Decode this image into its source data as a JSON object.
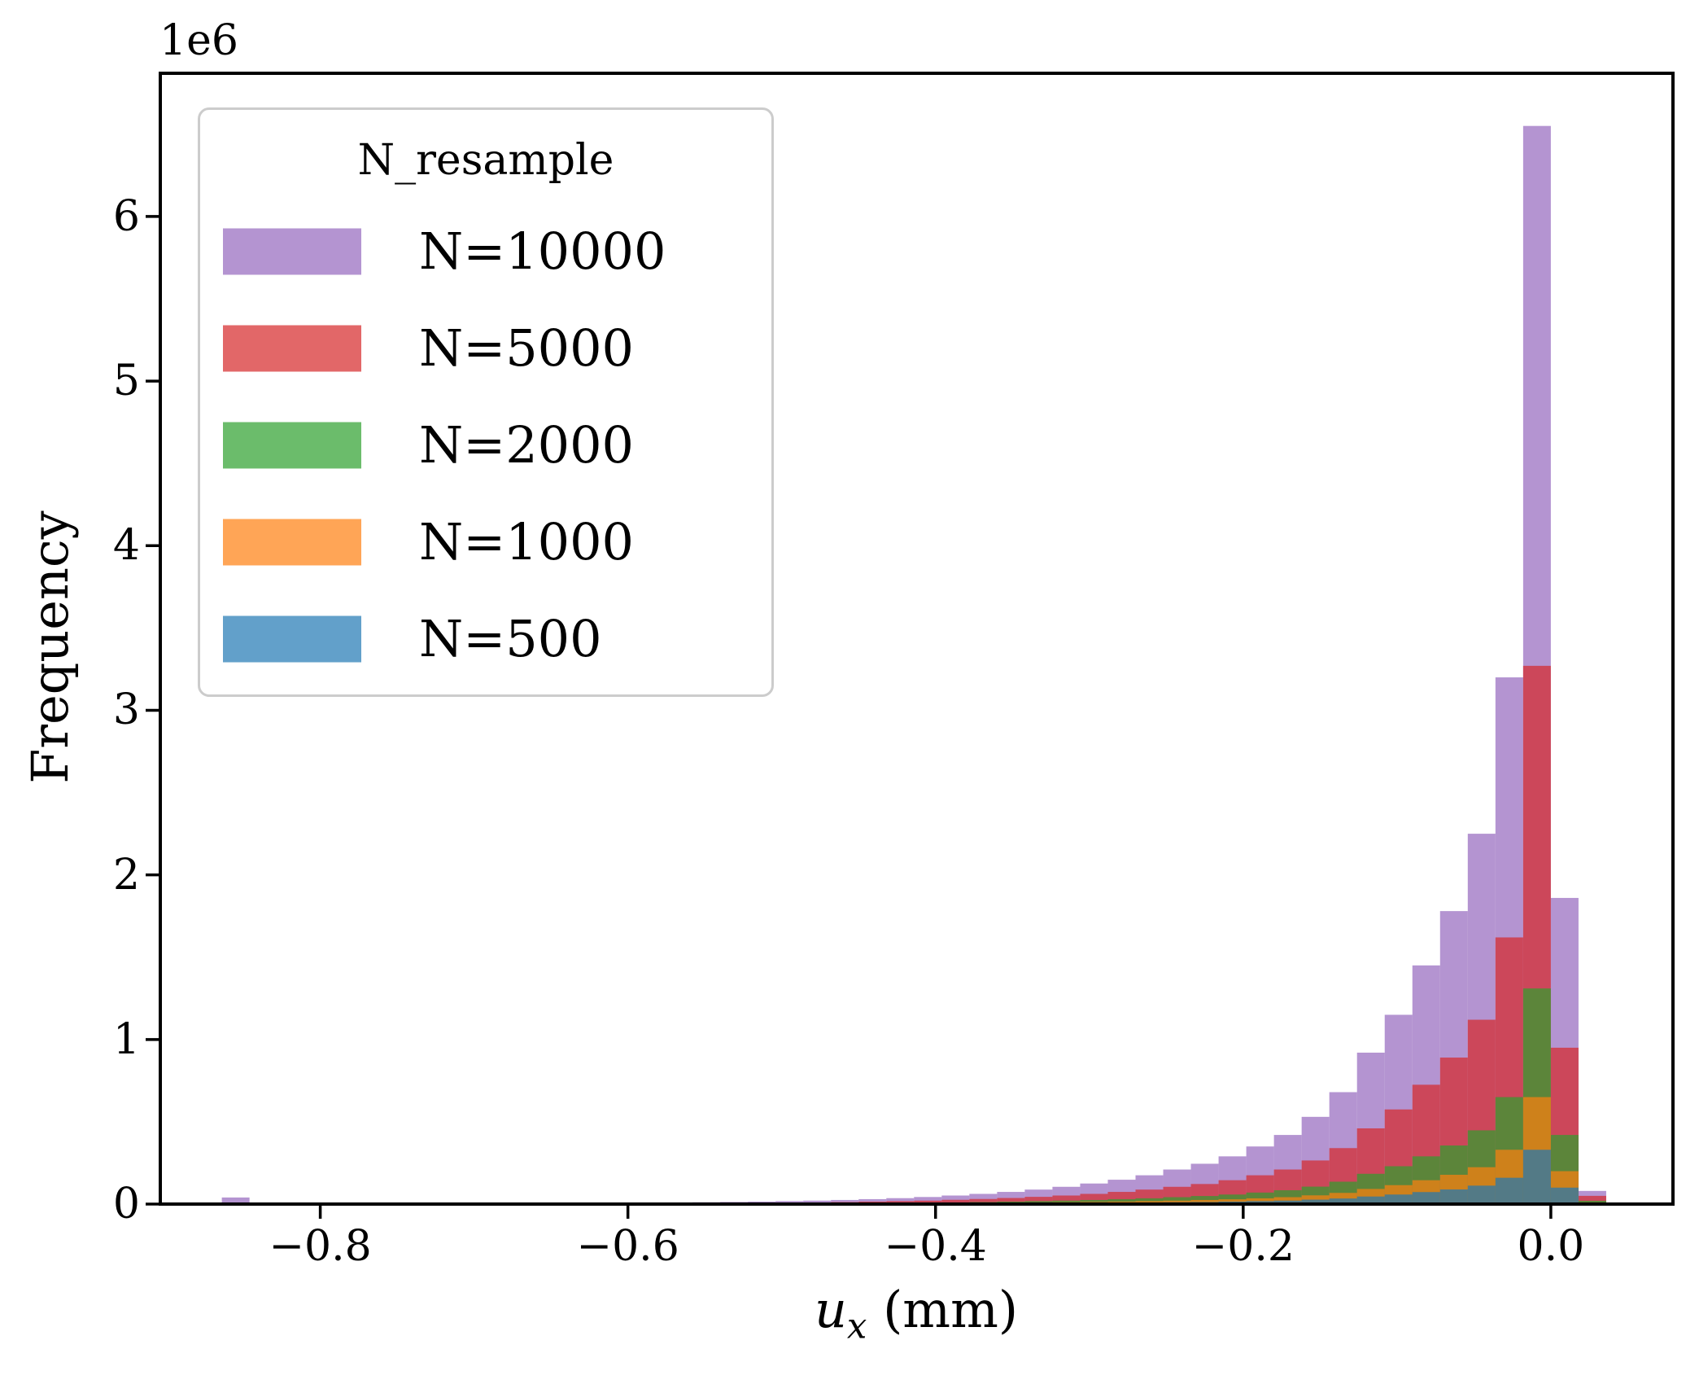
{
  "axes": {
    "offset_text": "1e6",
    "ylabel": "Frequency",
    "xlabel": {
      "variable": "u",
      "subscript": "x",
      "unit": " (mm)"
    },
    "x_ticks": {
      "values": [
        -0.8,
        -0.6,
        -0.4,
        -0.2,
        0.0
      ],
      "labels": [
        "−0.8",
        "−0.6",
        "−0.4",
        "−0.2",
        "0.0"
      ]
    },
    "y_ticks": {
      "values": [
        0,
        1,
        2,
        3,
        4,
        5,
        6
      ],
      "labels": [
        "0",
        "1",
        "2",
        "3",
        "4",
        "5",
        "6"
      ]
    },
    "spine_color": "#000000"
  },
  "legend": {
    "title": "N_resample",
    "entries": [
      {
        "label": "N=10000",
        "color": "#9467bd"
      },
      {
        "label": "N=5000",
        "color": "#d62728"
      },
      {
        "label": "N=2000",
        "color": "#2ca02c"
      },
      {
        "label": "N=1000",
        "color": "#ff7f0e"
      },
      {
        "label": "N=500",
        "color": "#1f77b4"
      }
    ]
  },
  "chart_data": {
    "type": "bar",
    "subtype": "overlaid-histogram",
    "title": "",
    "xlabel": "u_x (mm)",
    "ylabel": "Frequency",
    "y_unit_scale": "1e6",
    "alpha": 0.7,
    "bin_start": -0.864,
    "bin_width": 0.018,
    "n_bins": 50,
    "xlim": [
      -0.904,
      0.0794
    ],
    "ylim_millions": [
      0,
      6.87
    ],
    "grid": false,
    "legend_position": "upper-left",
    "series": [
      {
        "name": "N=10000",
        "color": "#9467bd",
        "counts_millions": [
          0.04,
          0,
          0,
          0,
          0,
          0,
          0,
          0.004,
          0.004,
          0.004,
          0.005,
          0.005,
          0.006,
          0.007,
          0.008,
          0.009,
          0.01,
          0.011,
          0.013,
          0.015,
          0.018,
          0.021,
          0.025,
          0.03,
          0.036,
          0.043,
          0.052,
          0.062,
          0.074,
          0.088,
          0.105,
          0.125,
          0.148,
          0.175,
          0.21,
          0.245,
          0.29,
          0.35,
          0.42,
          0.53,
          0.68,
          0.92,
          1.15,
          1.45,
          1.78,
          2.25,
          3.2,
          6.55,
          1.86,
          0.08
        ]
      },
      {
        "name": "N=5000",
        "color": "#d62728",
        "counts_millions": [
          0,
          0,
          0,
          0,
          0,
          0,
          0,
          0.002,
          0.002,
          0.002,
          0.002,
          0.003,
          0.003,
          0.003,
          0.004,
          0.004,
          0.005,
          0.005,
          0.006,
          0.007,
          0.009,
          0.01,
          0.012,
          0.015,
          0.018,
          0.021,
          0.026,
          0.031,
          0.037,
          0.044,
          0.052,
          0.062,
          0.074,
          0.088,
          0.105,
          0.122,
          0.145,
          0.175,
          0.21,
          0.265,
          0.34,
          0.46,
          0.575,
          0.725,
          0.89,
          1.12,
          1.62,
          3.27,
          0.95,
          0.05
        ]
      },
      {
        "name": "N=2000",
        "color": "#2ca02c",
        "counts_millions": [
          0,
          0,
          0,
          0,
          0,
          0,
          0,
          0.001,
          0.001,
          0.001,
          0.001,
          0.001,
          0.001,
          0.001,
          0.002,
          0.002,
          0.002,
          0.002,
          0.003,
          0.003,
          0.004,
          0.004,
          0.005,
          0.006,
          0.007,
          0.009,
          0.01,
          0.012,
          0.015,
          0.018,
          0.021,
          0.025,
          0.03,
          0.035,
          0.042,
          0.049,
          0.058,
          0.07,
          0.084,
          0.106,
          0.136,
          0.184,
          0.23,
          0.29,
          0.356,
          0.448,
          0.65,
          1.31,
          0.42,
          0.02
        ]
      },
      {
        "name": "N=1000",
        "color": "#ff7f0e",
        "counts_millions": [
          0,
          0,
          0,
          0,
          0,
          0,
          0,
          0,
          0,
          0,
          0.001,
          0.001,
          0.001,
          0.001,
          0.001,
          0.001,
          0.001,
          0.001,
          0.001,
          0.002,
          0.002,
          0.002,
          0.003,
          0.003,
          0.004,
          0.004,
          0.005,
          0.006,
          0.007,
          0.009,
          0.011,
          0.013,
          0.015,
          0.018,
          0.021,
          0.025,
          0.029,
          0.035,
          0.042,
          0.053,
          0.068,
          0.092,
          0.115,
          0.145,
          0.178,
          0.224,
          0.33,
          0.65,
          0.2,
          0.01
        ]
      },
      {
        "name": "N=500",
        "color": "#1f77b4",
        "counts_millions": [
          0,
          0,
          0,
          0,
          0,
          0,
          0,
          0,
          0,
          0,
          0,
          0,
          0,
          0.001,
          0.001,
          0.001,
          0.001,
          0.001,
          0.001,
          0.001,
          0.001,
          0.001,
          0.001,
          0.002,
          0.002,
          0.002,
          0.003,
          0.003,
          0.004,
          0.004,
          0.005,
          0.006,
          0.008,
          0.009,
          0.011,
          0.012,
          0.015,
          0.018,
          0.021,
          0.027,
          0.034,
          0.046,
          0.058,
          0.073,
          0.089,
          0.112,
          0.16,
          0.33,
          0.1,
          0.005
        ]
      }
    ]
  }
}
